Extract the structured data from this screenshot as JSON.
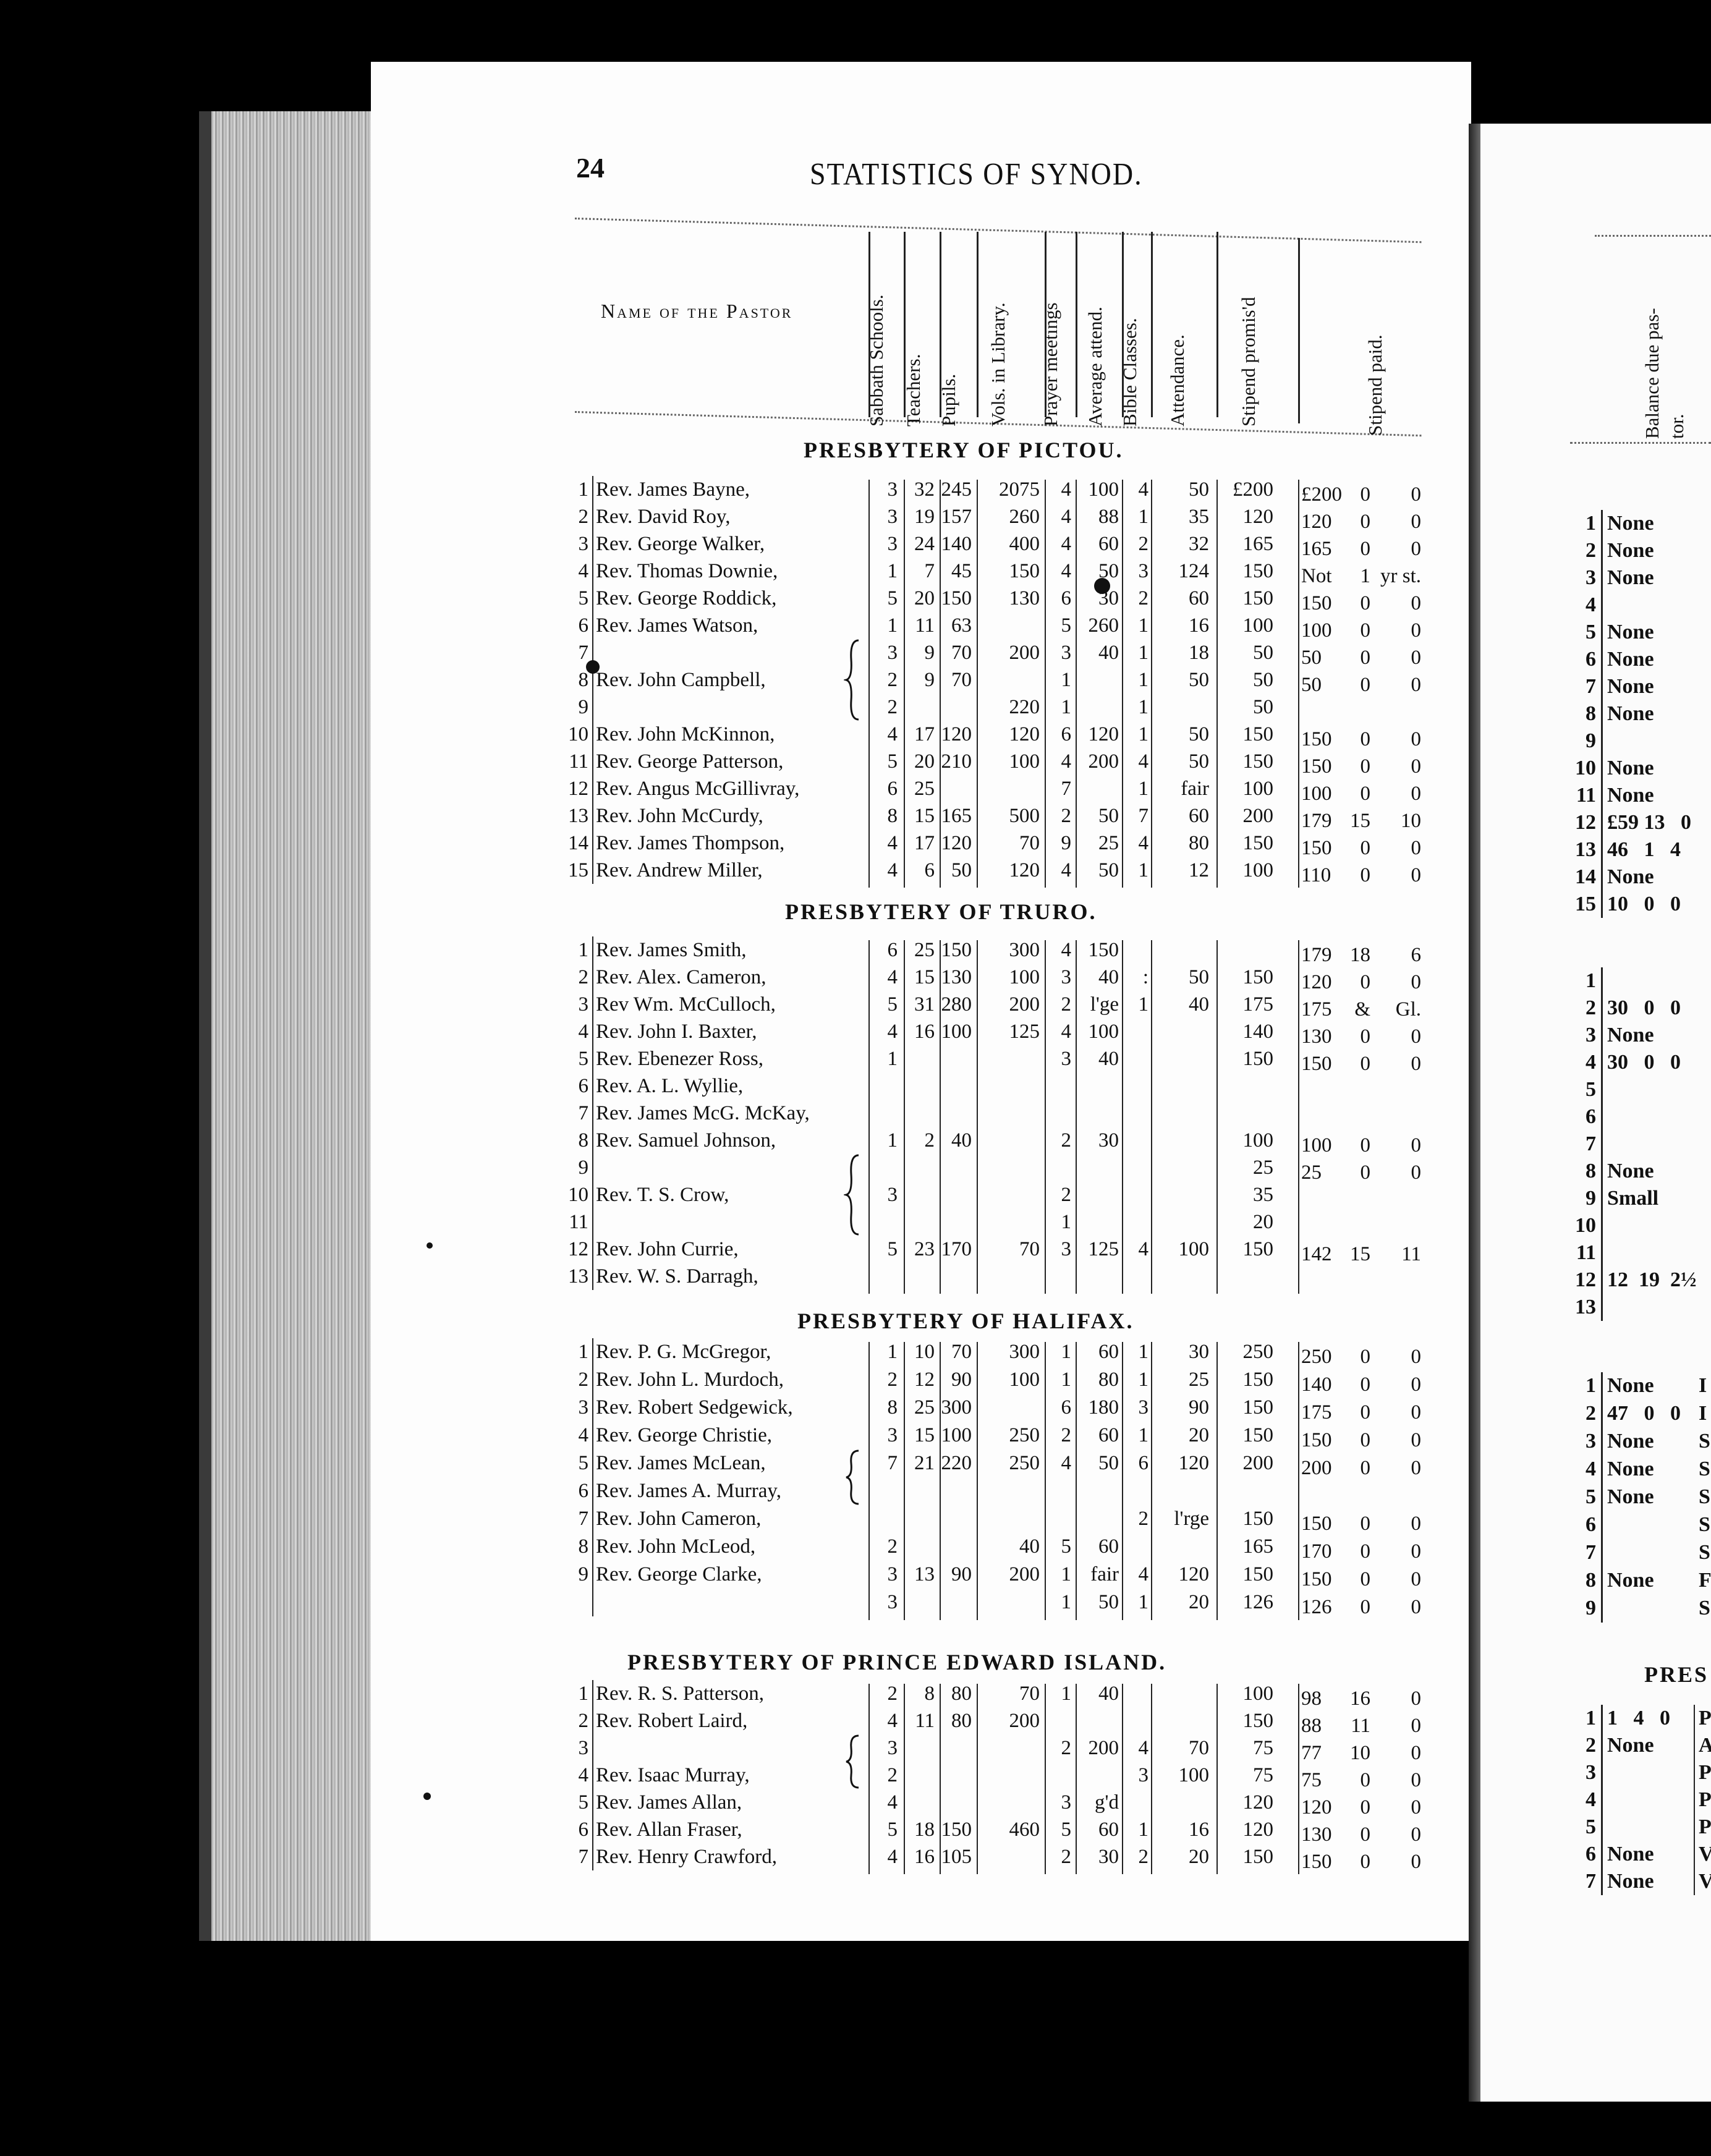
{
  "page_number": "24",
  "running_title": "STATISTICS OF SYNOD.",
  "header": {
    "name_column": "Name of the Pastor",
    "columns": [
      "Sabbath Schools.",
      "Teachers.",
      "Pupils.",
      "Vols. in Library.",
      "Prayer meetings",
      "Average attend.",
      "Bible Classes.",
      "Attendance.",
      "Stipend promis'd",
      "Stipend paid."
    ],
    "right_page_column": [
      "Balance due pas-",
      "tor."
    ]
  },
  "sections": [
    {
      "title": "PRESBYTERY OF PICTOU.",
      "rows": [
        {
          "n": "1",
          "name": "Rev. James Bayne,",
          "c": [
            "3",
            "32",
            "245",
            "2075",
            "4",
            "100",
            "4",
            "50",
            "£200"
          ],
          "paid": [
            "£200",
            "0",
            "0"
          ]
        },
        {
          "n": "2",
          "name": "Rev. David Roy,",
          "c": [
            "3",
            "19",
            "157",
            "260",
            "4",
            "88",
            "1",
            "35",
            "120"
          ],
          "paid": [
            "120",
            "0",
            "0"
          ]
        },
        {
          "n": "3",
          "name": "Rev. George Walker,",
          "c": [
            "3",
            "24",
            "140",
            "400",
            "4",
            "60",
            "2",
            "32",
            "165"
          ],
          "paid": [
            "165",
            "0",
            "0"
          ]
        },
        {
          "n": "4",
          "name": "Rev. Thomas Downie,",
          "c": [
            "1",
            "7",
            "45",
            "150",
            "4",
            "50",
            "3",
            "124",
            "150"
          ],
          "paid": [
            "Not",
            "1",
            "yr st."
          ]
        },
        {
          "n": "5",
          "name": "Rev. George Roddick,",
          "c": [
            "5",
            "20",
            "150",
            "130",
            "6",
            "30",
            "2",
            "60",
            "150"
          ],
          "paid": [
            "150",
            "0",
            "0"
          ]
        },
        {
          "n": "6",
          "name": "Rev. James Watson,",
          "c": [
            "1",
            "11",
            "63",
            "",
            "5",
            "260",
            "1",
            "16",
            "100"
          ],
          "paid": [
            "100",
            "0",
            "0"
          ]
        },
        {
          "n": "7",
          "name": "",
          "c": [
            "3",
            "9",
            "70",
            "200",
            "3",
            "40",
            "1",
            "18",
            "50"
          ],
          "paid": [
            "50",
            "0",
            "0"
          ]
        },
        {
          "n": "8",
          "name": "Rev. John Campbell,",
          "c": [
            "2",
            "9",
            "70",
            "",
            "1",
            "",
            "1",
            "50",
            "50"
          ],
          "paid": [
            "50",
            "0",
            "0"
          ]
        },
        {
          "n": "9",
          "name": "",
          "c": [
            "2",
            "",
            "",
            "220",
            "1",
            "",
            "1",
            "",
            "50"
          ],
          "paid": [
            "",
            "",
            ""
          ]
        },
        {
          "n": "10",
          "name": "Rev. John McKinnon,",
          "c": [
            "4",
            "17",
            "120",
            "120",
            "6",
            "120",
            "1",
            "50",
            "150"
          ],
          "paid": [
            "150",
            "0",
            "0"
          ]
        },
        {
          "n": "11",
          "name": "Rev. George Patterson,",
          "c": [
            "5",
            "20",
            "210",
            "100",
            "4",
            "200",
            "4",
            "50",
            "150"
          ],
          "paid": [
            "150",
            "0",
            "0"
          ]
        },
        {
          "n": "12",
          "name": "Rev. Angus McGillivray,",
          "c": [
            "6",
            "25",
            "",
            "",
            "7",
            "",
            "1",
            "fair",
            "100"
          ],
          "paid": [
            "100",
            "0",
            "0"
          ]
        },
        {
          "n": "13",
          "name": "Rev. John McCurdy,",
          "c": [
            "8",
            "15",
            "165",
            "500",
            "2",
            "50",
            "7",
            "60",
            "200"
          ],
          "paid": [
            "179",
            "15",
            "10"
          ]
        },
        {
          "n": "14",
          "name": "Rev. James Thompson,",
          "c": [
            "4",
            "17",
            "120",
            "70",
            "9",
            "25",
            "4",
            "80",
            "150"
          ],
          "paid": [
            "150",
            "0",
            "0"
          ]
        },
        {
          "n": "15",
          "name": "Rev. Andrew Miller,",
          "c": [
            "4",
            "6",
            "50",
            "120",
            "4",
            "50",
            "1",
            "12",
            "100"
          ],
          "paid": [
            "110",
            "0",
            "0"
          ]
        }
      ],
      "balance": [
        {
          "n": "1",
          "v": "None"
        },
        {
          "n": "2",
          "v": "None"
        },
        {
          "n": "3",
          "v": "None"
        },
        {
          "n": "4",
          "v": ""
        },
        {
          "n": "5",
          "v": "None"
        },
        {
          "n": "6",
          "v": "None"
        },
        {
          "n": "7",
          "v": "None"
        },
        {
          "n": "8",
          "v": "None"
        },
        {
          "n": "9",
          "v": ""
        },
        {
          "n": "10",
          "v": "None"
        },
        {
          "n": "11",
          "v": "None"
        },
        {
          "n": "12",
          "v": "£59 13   0"
        },
        {
          "n": "13",
          "v": "46   1   4"
        },
        {
          "n": "14",
          "v": "None"
        },
        {
          "n": "15",
          "v": "10   0   0"
        }
      ],
      "fragments": []
    },
    {
      "title": "PRESBYTERY OF TRURO.",
      "rows": [
        {
          "n": "1",
          "name": "Rev. James Smith,",
          "c": [
            "6",
            "25",
            "150",
            "300",
            "4",
            "150",
            "",
            "",
            ""
          ],
          "paid": [
            "179",
            "18",
            "6"
          ]
        },
        {
          "n": "2",
          "name": "Rev. Alex. Cameron,",
          "c": [
            "4",
            "15",
            "130",
            "100",
            "3",
            "40",
            ":",
            "50",
            "150"
          ],
          "paid": [
            "120",
            "0",
            "0"
          ]
        },
        {
          "n": "3",
          "name": "Rev  Wm. McCulloch,",
          "c": [
            "5",
            "31",
            "280",
            "200",
            "2",
            "l'ge",
            "1",
            "40",
            "175"
          ],
          "paid": [
            "175",
            "&",
            "Gl."
          ]
        },
        {
          "n": "4",
          "name": "Rev. John I. Baxter,",
          "c": [
            "4",
            "16",
            "100",
            "125",
            "4",
            "100",
            "",
            "",
            "140"
          ],
          "paid": [
            "130",
            "0",
            "0"
          ]
        },
        {
          "n": "5",
          "name": "Rev. Ebenezer Ross,",
          "c": [
            "1",
            "",
            "",
            "",
            "3",
            "40",
            "",
            "",
            "150"
          ],
          "paid": [
            "150",
            "0",
            "0"
          ]
        },
        {
          "n": "6",
          "name": "Rev. A. L. Wyllie,",
          "c": [
            "",
            "",
            "",
            "",
            "",
            "",
            "",
            "",
            ""
          ],
          "paid": [
            "",
            "",
            ""
          ]
        },
        {
          "n": "7",
          "name": "Rev. James McG. McKay,",
          "c": [
            "",
            "",
            "",
            "",
            "",
            "",
            "",
            "",
            ""
          ],
          "paid": [
            "",
            "",
            ""
          ]
        },
        {
          "n": "8",
          "name": "Rev. Samuel Johnson,",
          "c": [
            "1",
            "2",
            "40",
            "",
            "2",
            "30",
            "",
            "",
            "100"
          ],
          "paid": [
            "100",
            "0",
            "0"
          ]
        },
        {
          "n": "9",
          "name": "",
          "c": [
            "",
            "",
            "",
            "",
            "",
            "",
            "",
            "",
            "25"
          ],
          "paid": [
            "25",
            "0",
            "0"
          ]
        },
        {
          "n": "10",
          "name": "Rev. T. S. Crow,",
          "c": [
            "3",
            "",
            "",
            "",
            "2",
            "",
            "",
            "",
            "35"
          ],
          "paid": [
            "",
            "",
            ""
          ]
        },
        {
          "n": "11",
          "name": "",
          "c": [
            "",
            "",
            "",
            "",
            "1",
            "",
            "",
            "",
            "20"
          ],
          "paid": [
            "",
            "",
            ""
          ]
        },
        {
          "n": "12",
          "name": "Rev. John Currie,",
          "c": [
            "5",
            "23",
            "170",
            "70",
            "3",
            "125",
            "4",
            "100",
            "150"
          ],
          "paid": [
            "142",
            "15",
            "11"
          ]
        },
        {
          "n": "13",
          "name": "Rev. W. S. Darragh,",
          "c": [
            "",
            "",
            "",
            "",
            "",
            "",
            "",
            "",
            ""
          ],
          "paid": [
            "",
            "",
            ""
          ]
        }
      ],
      "balance": [
        {
          "n": "1",
          "v": ""
        },
        {
          "n": "2",
          "v": "30   0   0"
        },
        {
          "n": "3",
          "v": "None"
        },
        {
          "n": "4",
          "v": "30   0   0"
        },
        {
          "n": "5",
          "v": ""
        },
        {
          "n": "6",
          "v": ""
        },
        {
          "n": "7",
          "v": ""
        },
        {
          "n": "8",
          "v": "None"
        },
        {
          "n": "9",
          "v": "Small"
        },
        {
          "n": "10",
          "v": ""
        },
        {
          "n": "11",
          "v": ""
        },
        {
          "n": "12",
          "v": "12  19  2½"
        },
        {
          "n": "13",
          "v": ""
        }
      ],
      "fragments": []
    },
    {
      "title": "PRESBYTERY OF HALIFAX.",
      "rows": [
        {
          "n": "1",
          "name": "Rev. P. G. McGregor,",
          "c": [
            "1",
            "10",
            "70",
            "300",
            "1",
            "60",
            "1",
            "30",
            "250"
          ],
          "paid": [
            "250",
            "0",
            "0"
          ]
        },
        {
          "n": "2",
          "name": "Rev. John L. Murdoch,",
          "c": [
            "2",
            "12",
            "90",
            "100",
            "1",
            "80",
            "1",
            "25",
            "150"
          ],
          "paid": [
            "140",
            "0",
            "0"
          ]
        },
        {
          "n": "3",
          "name": "Rev. Robert Sedgewick,",
          "c": [
            "8",
            "25",
            "300",
            "",
            "6",
            "180",
            "3",
            "90",
            "150"
          ],
          "paid": [
            "175",
            "0",
            "0"
          ]
        },
        {
          "n": "4",
          "name": "Rev. George Christie,",
          "c": [
            "3",
            "15",
            "100",
            "250",
            "2",
            "60",
            "1",
            "20",
            "150"
          ],
          "paid": [
            "150",
            "0",
            "0"
          ]
        },
        {
          "n": "5",
          "name": "Rev. James McLean,",
          "c": [
            "7",
            "21",
            "220",
            "250",
            "4",
            "50",
            "6",
            "120",
            "200"
          ],
          "paid": [
            "200",
            "0",
            "0"
          ]
        },
        {
          "n": "6",
          "name": "Rev. James A. Murray,",
          "c": [
            "",
            "",
            "",
            "",
            "",
            "",
            "",
            "",
            ""
          ],
          "paid": [
            "",
            "",
            ""
          ]
        },
        {
          "n": "7",
          "name": "Rev. John Cameron,",
          "c": [
            "",
            "",
            "",
            "",
            "",
            "",
            "2",
            "l'rge",
            "150"
          ],
          "paid": [
            "150",
            "0",
            "0"
          ]
        },
        {
          "n": "8",
          "name": "Rev. John McLeod,",
          "c": [
            "2",
            "",
            "",
            "40",
            "5",
            "60",
            "",
            "",
            "165"
          ],
          "paid": [
            "170",
            "0",
            "0"
          ]
        },
        {
          "n": "9",
          "name": "Rev. George Clarke,",
          "c": [
            "3",
            "13",
            "90",
            "200",
            "1",
            "fair",
            "4",
            "120",
            "150"
          ],
          "paid": [
            "150",
            "0",
            "0"
          ]
        },
        {
          "n": "",
          "name": "",
          "c": [
            "3",
            "",
            "",
            "",
            "1",
            "50",
            "1",
            "20",
            "126"
          ],
          "paid": [
            "126",
            "0",
            "0"
          ]
        }
      ],
      "balance": [
        {
          "n": "1",
          "v": "None"
        },
        {
          "n": "2",
          "v": "47   0   0"
        },
        {
          "n": "3",
          "v": "None"
        },
        {
          "n": "4",
          "v": "None"
        },
        {
          "n": "5",
          "v": "None"
        },
        {
          "n": "6",
          "v": ""
        },
        {
          "n": "7",
          "v": ""
        },
        {
          "n": "8",
          "v": "None"
        },
        {
          "n": "9",
          "v": ""
        }
      ],
      "fragments": [
        "I",
        "I",
        "S",
        "S",
        "S",
        "S",
        "S",
        "F",
        "S"
      ]
    },
    {
      "title": "PRESBYTERY OF PRINCE EDWARD ISLAND.",
      "rows": [
        {
          "n": "1",
          "name": "Rev. R. S. Patterson,",
          "c": [
            "2",
            "8",
            "80",
            "70",
            "1",
            "40",
            "",
            "",
            "100"
          ],
          "paid": [
            "98",
            "16",
            "0"
          ]
        },
        {
          "n": "2",
          "name": "Rev. Robert Laird,",
          "c": [
            "4",
            "11",
            "80",
            "200",
            "",
            "",
            "",
            "",
            "150"
          ],
          "paid": [
            "88",
            "11",
            "0"
          ]
        },
        {
          "n": "3",
          "name": "",
          "c": [
            "3",
            "",
            "",
            "",
            "2",
            "200",
            "4",
            "70",
            "75"
          ],
          "paid": [
            "77",
            "10",
            "0"
          ]
        },
        {
          "n": "4",
          "name": "Rev. Isaac Murray,",
          "c": [
            "2",
            "",
            "",
            "",
            "",
            "",
            "3",
            "100",
            "75"
          ],
          "paid": [
            "75",
            "0",
            "0"
          ]
        },
        {
          "n": "5",
          "name": "Rev. James Allan,",
          "c": [
            "4",
            "",
            "",
            "",
            "3",
            "g'd",
            "",
            "",
            "120"
          ],
          "paid": [
            "120",
            "0",
            "0"
          ]
        },
        {
          "n": "6",
          "name": "Rev. Allan Fraser,",
          "c": [
            "5",
            "18",
            "150",
            "460",
            "5",
            "60",
            "1",
            "16",
            "120"
          ],
          "paid": [
            "130",
            "0",
            "0"
          ]
        },
        {
          "n": "7",
          "name": "Rev. Henry Crawford,",
          "c": [
            "4",
            "16",
            "105",
            "",
            "2",
            "30",
            "2",
            "20",
            "150"
          ],
          "paid": [
            "150",
            "0",
            "0"
          ]
        }
      ],
      "right_heading_fragment": "PRES",
      "balance": [
        {
          "n": "1",
          "v": "1   4   0"
        },
        {
          "n": "2",
          "v": "None"
        },
        {
          "n": "3",
          "v": ""
        },
        {
          "n": "4",
          "v": ""
        },
        {
          "n": "5",
          "v": ""
        },
        {
          "n": "6",
          "v": "None"
        },
        {
          "n": "7",
          "v": "None"
        }
      ],
      "fragments": [
        "P",
        "A",
        "P",
        "P",
        "P",
        "V",
        "V"
      ]
    }
  ]
}
